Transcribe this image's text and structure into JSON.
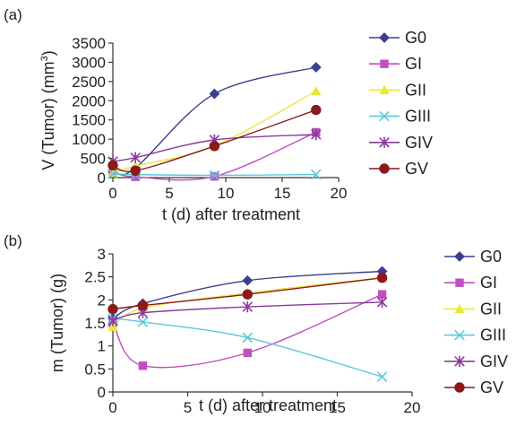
{
  "chart_data": [
    {
      "panel_label": "(a)",
      "type": "line",
      "xlabel": "t (d) after treatment",
      "ylabel_main": "V (Tumor) (mm",
      "ylabel_sup": "3",
      "ylabel_tail": ")",
      "xlim": [
        0,
        20
      ],
      "ylim": [
        0,
        3500
      ],
      "xticks": [
        0,
        5,
        10,
        15,
        20
      ],
      "yticks": [
        0,
        500,
        1000,
        1500,
        2000,
        2500,
        3000,
        3500
      ],
      "grid": false,
      "legend_position": "right",
      "series": [
        {
          "name": "G0",
          "color": "#3b3f8f",
          "marker": "diamond",
          "x": [
            0,
            2,
            9,
            18
          ],
          "y": [
            150,
            250,
            2180,
            2870
          ]
        },
        {
          "name": "GI",
          "color": "#c04fc0",
          "marker": "square",
          "x": [
            0,
            2,
            9,
            18
          ],
          "y": [
            150,
            20,
            30,
            1180
          ]
        },
        {
          "name": "GII",
          "color": "#e8e83a",
          "marker": "triangle",
          "x": [
            0,
            2,
            9,
            18
          ],
          "y": [
            120,
            300,
            820,
            2250
          ]
        },
        {
          "name": "GIII",
          "color": "#5bc8d8",
          "marker": "x",
          "x": [
            0,
            2,
            9,
            18
          ],
          "y": [
            100,
            80,
            60,
            80
          ]
        },
        {
          "name": "GIV",
          "color": "#8b3a9a",
          "marker": "star",
          "x": [
            0,
            2,
            9,
            18
          ],
          "y": [
            420,
            520,
            980,
            1120
          ]
        },
        {
          "name": "GV",
          "color": "#8b1a1a",
          "marker": "circle",
          "x": [
            0,
            2,
            9,
            18
          ],
          "y": [
            320,
            180,
            820,
            1760
          ]
        }
      ]
    },
    {
      "panel_label": "(b)",
      "type": "line",
      "xlabel": "t (d) after treatment",
      "ylabel_main": "m (Tumor) (g)",
      "ylabel_sup": "",
      "ylabel_tail": "",
      "xlim": [
        0,
        20
      ],
      "ylim": [
        0,
        3
      ],
      "xticks": [
        0,
        5,
        10,
        15,
        20
      ],
      "yticks": [
        0,
        0.5,
        1,
        1.5,
        2,
        2.5,
        3
      ],
      "grid": false,
      "legend_position": "right",
      "series": [
        {
          "name": "G0",
          "color": "#3b3f8f",
          "marker": "diamond",
          "x": [
            0,
            2,
            9,
            18
          ],
          "y": [
            1.6,
            1.92,
            2.42,
            2.62
          ]
        },
        {
          "name": "GI",
          "color": "#c04fc0",
          "marker": "square",
          "x": [
            0,
            2,
            9,
            18
          ],
          "y": [
            1.5,
            0.57,
            0.85,
            2.12
          ]
        },
        {
          "name": "GII",
          "color": "#e8e83a",
          "marker": "triangle",
          "x": [
            0,
            2,
            9,
            18
          ],
          "y": [
            1.42,
            1.82,
            2.15,
            2.48
          ]
        },
        {
          "name": "GIII",
          "color": "#5bc8d8",
          "marker": "x",
          "x": [
            0,
            2,
            9,
            18
          ],
          "y": [
            1.6,
            1.52,
            1.18,
            0.33
          ]
        },
        {
          "name": "GIV",
          "color": "#8b3a9a",
          "marker": "star",
          "x": [
            0,
            2,
            9,
            18
          ],
          "y": [
            1.55,
            1.72,
            1.85,
            1.95
          ]
        },
        {
          "name": "GV",
          "color": "#8b1a1a",
          "marker": "circle",
          "x": [
            0,
            2,
            9,
            18
          ],
          "y": [
            1.8,
            1.88,
            2.12,
            2.48
          ]
        }
      ]
    }
  ]
}
